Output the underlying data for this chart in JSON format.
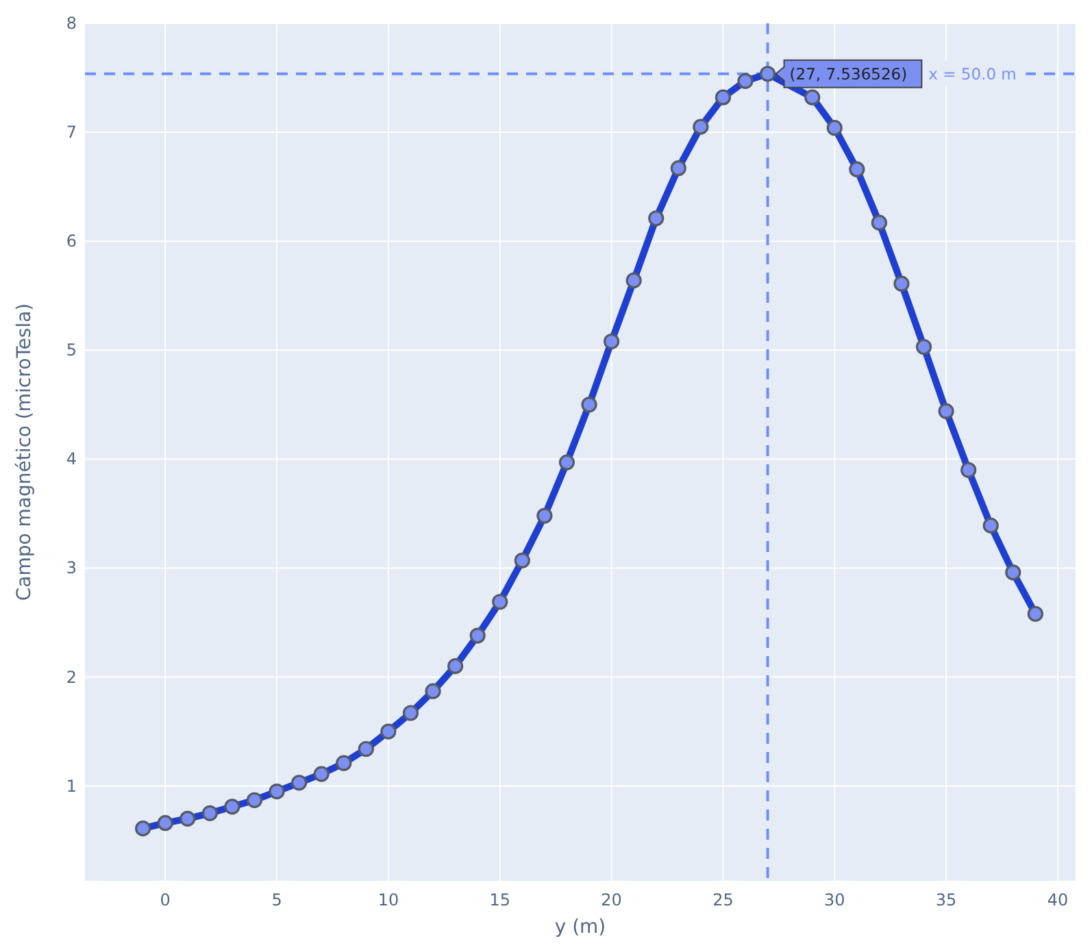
{
  "chart_data": {
    "type": "line",
    "xlabel": "y (m)",
    "ylabel": "Campo magnético (microTesla)",
    "x": [
      -1,
      0,
      1,
      2,
      3,
      4,
      5,
      6,
      7,
      8,
      9,
      10,
      11,
      12,
      13,
      14,
      15,
      16,
      17,
      18,
      19,
      20,
      21,
      22,
      23,
      24,
      25,
      26,
      27,
      28,
      29,
      30,
      31,
      32,
      33,
      34,
      35,
      36,
      37,
      38,
      39
    ],
    "series": [
      {
        "name": "x = 50.0 m",
        "color": "#1f3fd1",
        "values": [
          0.61,
          0.66,
          0.7,
          0.75,
          0.81,
          0.87,
          0.95,
          1.03,
          1.11,
          1.21,
          1.34,
          1.5,
          1.67,
          1.87,
          2.1,
          2.38,
          2.69,
          3.07,
          3.48,
          3.97,
          4.5,
          5.08,
          5.64,
          6.21,
          6.67,
          7.05,
          7.32,
          7.47,
          7.536526,
          null,
          7.32,
          7.04,
          6.66,
          6.17,
          5.61,
          5.03,
          4.44,
          3.9,
          3.39,
          2.96,
          2.58
        ]
      }
    ],
    "xlim": [
      -3.6,
      40.8
    ],
    "ylim": [
      0.13,
      8
    ],
    "xticks": [
      0,
      5,
      10,
      15,
      20,
      25,
      30,
      35,
      40
    ],
    "yticks": [
      1,
      2,
      3,
      4,
      5,
      6,
      7,
      8
    ],
    "grid": true,
    "marker": "circle",
    "line_style": "solid",
    "ref_lines": [
      {
        "axis": "x",
        "value": 27,
        "color": "#6e8efb",
        "line_style": "dashed"
      },
      {
        "axis": "y",
        "value": 7.536526,
        "color": "#6e8efb",
        "line_style": "dashed"
      }
    ],
    "annotations": [
      {
        "text": "(27, 7.536526)",
        "x": 27,
        "y": 7.536526
      }
    ]
  }
}
